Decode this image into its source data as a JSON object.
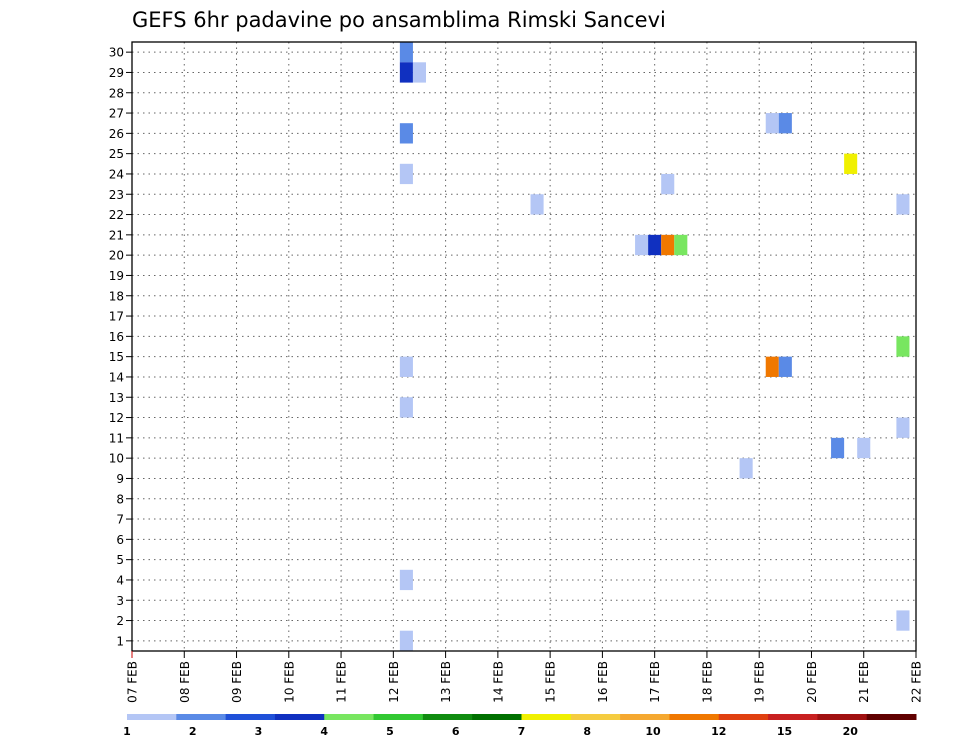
{
  "chart_data": {
    "type": "heatmap",
    "title": "GEFS 6hr padavine po ansamblima Rimski Sancevi",
    "x_tick_labels": [
      "07 FEB",
      "08 FEB",
      "09 FEB",
      "10 FEB",
      "11 FEB",
      "12 FEB",
      "13 FEB",
      "14 FEB",
      "15 FEB",
      "16 FEB",
      "17 FEB",
      "18 FEB",
      "19 FEB",
      "20 FEB",
      "21 FEB",
      "22 FEB"
    ],
    "y_tick_labels": [
      "1",
      "2",
      "3",
      "4",
      "5",
      "6",
      "7",
      "8",
      "9",
      "10",
      "11",
      "12",
      "13",
      "14",
      "15",
      "16",
      "17",
      "18",
      "19",
      "20",
      "21",
      "22",
      "23",
      "24",
      "25",
      "26",
      "27",
      "28",
      "29",
      "30"
    ],
    "xlim_days": [
      0,
      15
    ],
    "ylim": [
      0.5,
      30.5
    ],
    "grid": true,
    "colorbar": {
      "colors": [
        "#b4c6f5",
        "#5a8ae6",
        "#1f50d8",
        "#1030c0",
        "#78e660",
        "#32c832",
        "#108c10",
        "#007000",
        "#f0f000",
        "#f5cc40",
        "#f5a830",
        "#f07800",
        "#e04010",
        "#c82020",
        "#a01010",
        "#600000"
      ],
      "labels": [
        {
          "text": "1",
          "pos": 0
        },
        {
          "text": "2",
          "pos": 1
        },
        {
          "text": "3",
          "pos": 2
        },
        {
          "text": "4",
          "pos": 3
        },
        {
          "text": "5",
          "pos": 4
        },
        {
          "text": "6",
          "pos": 5
        },
        {
          "text": "7",
          "pos": 6
        },
        {
          "text": "8",
          "pos": 7
        },
        {
          "text": "10",
          "pos": 8
        },
        {
          "text": "12",
          "pos": 9
        },
        {
          "text": "15",
          "pos": 10
        },
        {
          "text": "20",
          "pos": 11
        }
      ]
    },
    "cells": [
      {
        "day": 5.25,
        "member": 30,
        "value": 2
      },
      {
        "day": 5.25,
        "member": 29,
        "value": 4
      },
      {
        "day": 5.5,
        "member": 29,
        "value": 1
      },
      {
        "day": 5.25,
        "member": 26,
        "value": 2
      },
      {
        "day": 5.25,
        "member": 24,
        "value": 1
      },
      {
        "day": 5.25,
        "member": 14.5,
        "value": 1
      },
      {
        "day": 5.25,
        "member": 12.5,
        "value": 1
      },
      {
        "day": 5.25,
        "member": 4,
        "value": 1
      },
      {
        "day": 5.25,
        "member": 1,
        "value": 1
      },
      {
        "day": 7.75,
        "member": 22.5,
        "value": 1
      },
      {
        "day": 9.75,
        "member": 20.5,
        "value": 1
      },
      {
        "day": 10.0,
        "member": 20.5,
        "value": 4
      },
      {
        "day": 10.25,
        "member": 20.5,
        "value": 20
      },
      {
        "day": 10.5,
        "member": 20.5,
        "value": 5
      },
      {
        "day": 10.25,
        "member": 23.5,
        "value": 1
      },
      {
        "day": 11.75,
        "member": 9.5,
        "value": 1
      },
      {
        "day": 12.25,
        "member": 26.5,
        "value": 1
      },
      {
        "day": 12.5,
        "member": 26.5,
        "value": 2
      },
      {
        "day": 12.25,
        "member": 14.5,
        "value": 20
      },
      {
        "day": 12.5,
        "member": 14.5,
        "value": 2
      },
      {
        "day": 13.5,
        "member": 10.5,
        "value": 2
      },
      {
        "day": 13.75,
        "member": 24.5,
        "value": 10
      },
      {
        "day": 14.0,
        "member": 10.5,
        "value": 1
      },
      {
        "day": 14.75,
        "member": 22.5,
        "value": 1
      },
      {
        "day": 14.75,
        "member": 15.5,
        "value": 5
      },
      {
        "day": 14.75,
        "member": 11.5,
        "value": 1
      },
      {
        "day": 14.75,
        "member": 2,
        "value": 1
      }
    ]
  }
}
